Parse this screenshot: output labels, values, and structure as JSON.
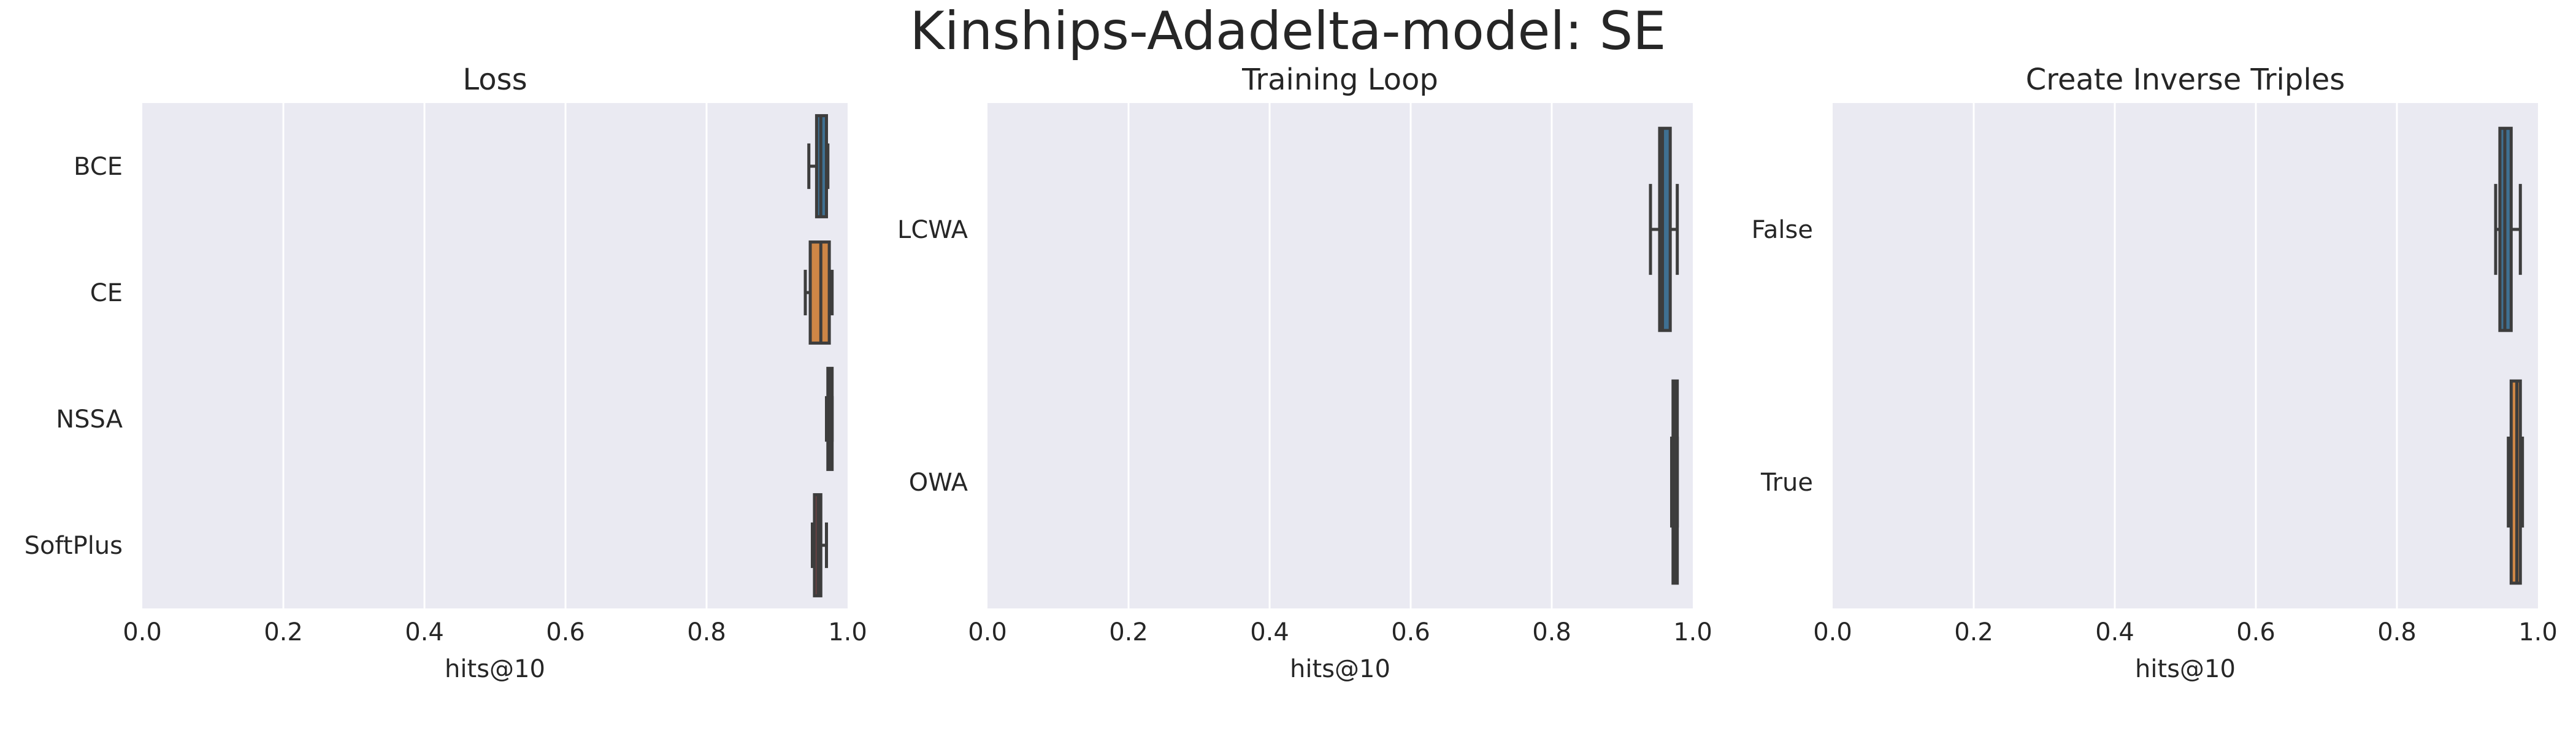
{
  "figure": {
    "title": "Kinships-Adadelta-model: SE"
  },
  "colors": {
    "background": "#EAEAF2",
    "grid": "#FFFFFF",
    "edge": "#3D3D3D",
    "text": "#262626"
  },
  "chart_data": [
    {
      "type": "boxplot",
      "orientation": "horizontal",
      "title": "Loss",
      "xlabel": "hits@10",
      "ylabel": "",
      "xlim": [
        0.0,
        1.0
      ],
      "xticks": [
        "0.0",
        "0.2",
        "0.4",
        "0.6",
        "0.8",
        "1.0"
      ],
      "grid": true,
      "categories": [
        "BCE",
        "CE",
        "NSSA",
        "SoftPlus"
      ],
      "colors": [
        "#3274A1",
        "#E1812C",
        "#3A923A",
        "#C03D3E"
      ],
      "boxes": [
        {
          "whislo": 0.945,
          "q1": 0.956,
          "med": 0.962,
          "q3": 0.97,
          "whishi": 0.972
        },
        {
          "whislo": 0.94,
          "q1": 0.947,
          "med": 0.962,
          "q3": 0.974,
          "whishi": 0.978
        },
        {
          "whislo": 0.97,
          "q1": 0.972,
          "med": 0.975,
          "q3": 0.978,
          "whishi": 0.978
        },
        {
          "whislo": 0.95,
          "q1": 0.953,
          "med": 0.958,
          "q3": 0.962,
          "whishi": 0.97
        }
      ]
    },
    {
      "type": "boxplot",
      "orientation": "horizontal",
      "title": "Training Loop",
      "xlabel": "hits@10",
      "ylabel": "",
      "xlim": [
        0.0,
        1.0
      ],
      "xticks": [
        "0.0",
        "0.2",
        "0.4",
        "0.6",
        "0.8",
        "1.0"
      ],
      "grid": true,
      "categories": [
        "LCWA",
        "OWA"
      ],
      "colors": [
        "#3274A1",
        "#E1812C"
      ],
      "boxes": [
        {
          "whislo": 0.94,
          "q1": 0.953,
          "med": 0.957,
          "q3": 0.968,
          "whishi": 0.978
        },
        {
          "whislo": 0.97,
          "q1": 0.972,
          "med": 0.975,
          "q3": 0.978,
          "whishi": 0.978
        }
      ]
    },
    {
      "type": "boxplot",
      "orientation": "horizontal",
      "title": "Create Inverse Triples",
      "xlabel": "hits@10",
      "ylabel": "",
      "xlim": [
        0.0,
        1.0
      ],
      "xticks": [
        "0.0",
        "0.2",
        "0.4",
        "0.6",
        "0.8",
        "1.0"
      ],
      "grid": true,
      "categories": [
        "False",
        "True"
      ],
      "colors": [
        "#3274A1",
        "#E1812C"
      ],
      "boxes": [
        {
          "whislo": 0.94,
          "q1": 0.946,
          "med": 0.953,
          "q3": 0.962,
          "whishi": 0.975
        },
        {
          "whislo": 0.958,
          "q1": 0.962,
          "med": 0.97,
          "q3": 0.975,
          "whishi": 0.978
        }
      ]
    }
  ]
}
